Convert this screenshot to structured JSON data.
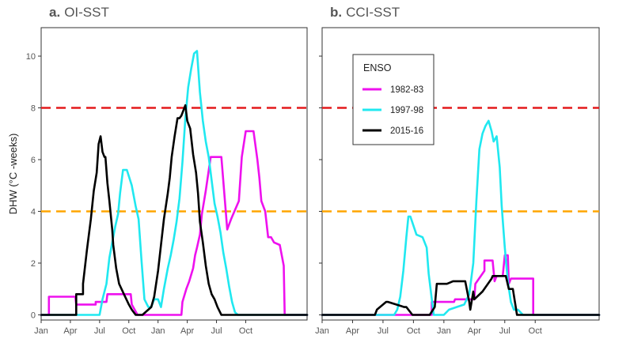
{
  "chart_data": [
    {
      "type": "line",
      "panel_letter": "a.",
      "title": "OI-SST",
      "ylabel": "DHW (°C -weeks)",
      "xlabel": "",
      "x_unit": "month index from Jan of first ENSO year",
      "xlim": [
        0,
        27.3
      ],
      "ylim": [
        -0.2,
        11.1
      ],
      "x_ticks": [
        0,
        3,
        6,
        9,
        12,
        15,
        18,
        21
      ],
      "x_tick_labels": [
        "Jan",
        "Apr",
        "Jul",
        "Oct",
        "Jan",
        "Apr",
        "Jul",
        "Oct"
      ],
      "y_ticks": [
        0,
        2,
        4,
        6,
        8,
        10
      ],
      "thresholds": [
        {
          "value": 8,
          "color": "#e41a1c"
        },
        {
          "value": 4,
          "color": "#ffa500"
        }
      ],
      "series": [
        {
          "name": "1982-83",
          "color": "#ee11ee",
          "x": [
            0,
            0.8,
            0.8,
            2.2,
            2.2,
            3.5,
            3.6,
            5.6,
            5.6,
            6.7,
            6.8,
            7.3,
            7.3,
            9.2,
            9.3,
            9.9,
            10,
            14.4,
            14.5,
            14.9,
            15.2,
            15.6,
            15.8,
            16,
            16.3,
            16.5,
            16.9,
            17.4,
            18.5,
            19.1,
            19.5,
            20.3,
            20.6,
            21,
            21.8,
            22.2,
            22.4,
            22.6,
            23,
            23.3,
            23.6,
            23.9,
            24.5,
            24.9,
            25,
            27.3
          ],
          "y": [
            0,
            0,
            0.7,
            0.7,
            0.7,
            0.7,
            0.4,
            0.4,
            0.5,
            0.5,
            0.8,
            0.8,
            0.8,
            0.8,
            0.4,
            0,
            0,
            0,
            0.5,
            1,
            1.3,
            1.8,
            2.3,
            2.6,
            3.1,
            3.9,
            4.8,
            6.1,
            6.1,
            3.3,
            3.7,
            4.4,
            6.1,
            7.1,
            7.1,
            6,
            5.3,
            4.4,
            4,
            3,
            3,
            2.8,
            2.7,
            1.9,
            0,
            0
          ]
        },
        {
          "name": "1997-98",
          "color": "#20e8f0",
          "x": [
            0,
            6,
            6.3,
            6.7,
            7,
            7.3,
            7.6,
            7.9,
            8.1,
            8.4,
            8.8,
            9.3,
            9.7,
            10,
            10.3,
            10.6,
            11,
            11.3,
            11.6,
            12,
            12.3,
            12.6,
            13,
            13.3,
            13.6,
            13.9,
            14.2,
            14.5,
            14.8,
            15.1,
            15.4,
            15.7,
            16,
            16.3,
            16.6,
            16.9,
            17.2,
            17.5,
            17.8,
            18.1,
            18.4,
            18.7,
            19,
            19.3,
            19.6,
            19.9,
            20.2,
            20.5,
            21,
            27.3
          ],
          "y": [
            0,
            0,
            0.6,
            1.2,
            2.2,
            2.8,
            3.4,
            3.9,
            4.7,
            5.6,
            5.6,
            5,
            4.2,
            3.7,
            2.1,
            0.6,
            0.3,
            0.3,
            0.6,
            0.6,
            0.3,
            1,
            1.8,
            2.3,
            2.9,
            3.6,
            4.5,
            5.9,
            7.6,
            8.8,
            9.5,
            10.1,
            10.2,
            8.6,
            7.5,
            6.7,
            6.1,
            5.2,
            4.3,
            3.8,
            3.2,
            2.4,
            1.8,
            1.1,
            0.5,
            0.1,
            0,
            0,
            0,
            0
          ]
        },
        {
          "name": "2015-16",
          "color": "#000000",
          "x": [
            0,
            3.6,
            3.6,
            4.3,
            4.3,
            4.7,
            5.1,
            5.4,
            5.7,
            5.9,
            6.1,
            6.3,
            6.5,
            6.6,
            6.8,
            7,
            7.3,
            7.4,
            7.7,
            8,
            8.5,
            9,
            9.3,
            9.7,
            10,
            10.4,
            11,
            11.3,
            11.6,
            12,
            12.3,
            12.6,
            13,
            13.2,
            13.4,
            13.7,
            14,
            14.2,
            14.4,
            14.6,
            14.8,
            15,
            15.3,
            15.6,
            15.9,
            16.1,
            16.3,
            16.6,
            16.9,
            17.2,
            17.5,
            17.8,
            18.1,
            18.5,
            18.8,
            19.2,
            27.3
          ],
          "y": [
            0,
            0,
            0.8,
            0.8,
            1.2,
            2.5,
            3.7,
            4.8,
            5.5,
            6.6,
            6.9,
            6.3,
            6.1,
            6.1,
            5.1,
            4.4,
            3.3,
            2.7,
            1.8,
            1.2,
            0.8,
            0.4,
            0.2,
            0,
            0,
            0,
            0.2,
            0.3,
            0.7,
            1.7,
            2.7,
            3.7,
            4.7,
            5.3,
            6.1,
            6.9,
            7.6,
            7.6,
            7.7,
            7.9,
            8.1,
            7.5,
            7.2,
            6.2,
            5.5,
            4.7,
            3.6,
            2.8,
            1.9,
            1.2,
            0.8,
            0.6,
            0.3,
            0,
            0,
            0,
            0
          ]
        }
      ]
    },
    {
      "type": "line",
      "panel_letter": "b.",
      "title": "CCI-SST",
      "xlabel": "",
      "x_unit": "month index from Jan of first ENSO year",
      "xlim": [
        0,
        27.3
      ],
      "ylim": [
        -0.2,
        11.1
      ],
      "x_ticks": [
        0,
        3,
        6,
        9,
        12,
        15,
        18,
        21
      ],
      "x_tick_labels": [
        "Jan",
        "Apr",
        "Jul",
        "Oct",
        "Jan",
        "Apr",
        "Jul",
        "Oct"
      ],
      "y_ticks": [
        0,
        2,
        4,
        6,
        8,
        10
      ],
      "thresholds": [
        {
          "value": 8,
          "color": "#e41a1c"
        },
        {
          "value": 4,
          "color": "#ffa500"
        }
      ],
      "legend": {
        "title": "ENSO",
        "position": "top-left",
        "entries": [
          "1982-83",
          "1997-98",
          "2015-16"
        ]
      },
      "series": [
        {
          "name": "1982-83",
          "color": "#ee11ee",
          "x": [
            0,
            10.8,
            10.8,
            13,
            13.1,
            15,
            15.1,
            16,
            16,
            16.5,
            16.8,
            17,
            17.2,
            17.8,
            18,
            18.3,
            18.4,
            18.6,
            19,
            19.4,
            19.5,
            20.8,
            20.8,
            27.3
          ],
          "y": [
            0,
            0,
            0.5,
            0.5,
            0.6,
            0.6,
            1.2,
            1.7,
            2.1,
            2.1,
            2.1,
            1.3,
            1.5,
            1.5,
            2.3,
            2.3,
            1.2,
            1.4,
            1.4,
            1.4,
            1.4,
            1.4,
            0,
            0
          ]
        },
        {
          "name": "1997-98",
          "color": "#20e8f0",
          "x": [
            0,
            7.1,
            7.4,
            7.7,
            8,
            8.3,
            8.5,
            8.7,
            9.3,
            9.9,
            10.3,
            10.5,
            11,
            12,
            12.5,
            14,
            14.5,
            14.9,
            15.2,
            15.5,
            15.8,
            16.1,
            16.4,
            16.7,
            16.9,
            17.2,
            17.5,
            17.7,
            18,
            18.3,
            18.6,
            18.9,
            19.3,
            19.8,
            20,
            27.3
          ],
          "y": [
            0,
            0,
            0.2,
            0.7,
            1.7,
            3,
            3.8,
            3.8,
            3.1,
            3,
            2.6,
            1.6,
            0,
            0,
            0.2,
            0.4,
            0.8,
            2,
            4.4,
            6.4,
            7,
            7.3,
            7.5,
            7.1,
            6.7,
            6.9,
            5.7,
            4.2,
            2.6,
            1.3,
            0.5,
            0.2,
            0.2,
            0,
            0,
            0
          ]
        },
        {
          "name": "2015-16",
          "color": "#000000",
          "x": [
            0,
            5.2,
            5.4,
            6.3,
            6.5,
            8.1,
            8.3,
            8.9,
            9.4,
            10,
            10.6,
            11.1,
            11.3,
            12.3,
            12.9,
            13.5,
            14.1,
            14.5,
            14.6,
            14.9,
            15,
            15.8,
            16.7,
            16.8,
            17.5,
            18.1,
            18.4,
            18.8,
            19.2,
            27.3
          ],
          "y": [
            0,
            0,
            0.2,
            0.5,
            0.5,
            0.3,
            0.3,
            0,
            0,
            0,
            0,
            0.3,
            1.2,
            1.2,
            1.3,
            1.3,
            1.3,
            0.5,
            0.2,
            0.9,
            0.6,
            0.9,
            1.4,
            1.5,
            1.5,
            1.5,
            1,
            1,
            0,
            0
          ]
        }
      ]
    }
  ]
}
